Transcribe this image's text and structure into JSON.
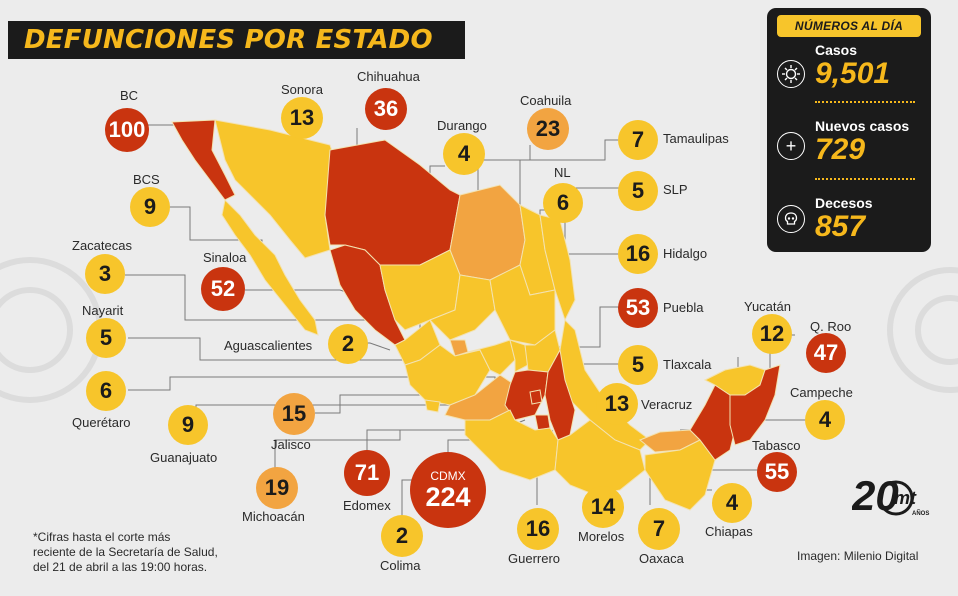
{
  "header": {
    "title": "DEFUNCIONES POR ESTADO"
  },
  "states": [
    {
      "name": "BC",
      "value": "100"
    },
    {
      "name": "Sonora",
      "value": "13"
    },
    {
      "name": "Chihuahua",
      "value": "36"
    },
    {
      "name": "Durango",
      "value": "4"
    },
    {
      "name": "Coahuila",
      "value": "23"
    },
    {
      "name": "Tamaulipas",
      "value": "7"
    },
    {
      "name": "BCS",
      "value": "9"
    },
    {
      "name": "NL",
      "value": "6"
    },
    {
      "name": "SLP",
      "value": "5"
    },
    {
      "name": "Zacatecas",
      "value": "3"
    },
    {
      "name": "Sinaloa",
      "value": "52"
    },
    {
      "name": "Hidalgo",
      "value": "16"
    },
    {
      "name": "Nayarit",
      "value": "5"
    },
    {
      "name": "Puebla",
      "value": "53"
    },
    {
      "name": "Aguascalientes",
      "value": "2"
    },
    {
      "name": "Yucatán",
      "value": "12"
    },
    {
      "name": "Q. Roo",
      "value": "47"
    },
    {
      "name": "Tlaxcala",
      "value": "5"
    },
    {
      "name": "Querétaro",
      "value": "6"
    },
    {
      "name": "Campeche",
      "value": "4"
    },
    {
      "name": "Guanajuato",
      "value": "9"
    },
    {
      "name": "Jalisco",
      "value": "15"
    },
    {
      "name": "Veracruz",
      "value": "13"
    },
    {
      "name": "Tabasco",
      "value": "55"
    },
    {
      "name": "Michoacán",
      "value": "19"
    },
    {
      "name": "Edomex",
      "value": "71"
    },
    {
      "name": "CDMX",
      "value": "224"
    },
    {
      "name": "Morelos",
      "value": "14"
    },
    {
      "name": "Chiapas",
      "value": "4"
    },
    {
      "name": "Colima",
      "value": "2"
    },
    {
      "name": "Guerrero",
      "value": "16"
    },
    {
      "name": "Oaxaca",
      "value": "7"
    }
  ],
  "panel": {
    "title": "NÚMEROS AL DÍA",
    "stats": [
      {
        "label": "Casos",
        "value": "9,501",
        "icon": "virus-icon"
      },
      {
        "label": "Nuevos casos",
        "value": "729",
        "icon": "plus-icon"
      },
      {
        "label": "Decesos",
        "value": "857",
        "icon": "skull-icon"
      }
    ]
  },
  "footnote": {
    "lines": [
      "*Cifras hasta el corte más",
      "reciente de la Secretaría de Salud,",
      "del 21 de abril a las 19:00 horas."
    ]
  },
  "credit": "Imagen: Milenio Digital",
  "logo": {
    "text": "20",
    "brand": "mt",
    "sub": "AÑOS"
  },
  "colors": {
    "low": "#f7c52b",
    "mid": "#f2a441",
    "high": "#c9340f",
    "dark": "#1b1b1b",
    "accent": "#f6b81c"
  }
}
